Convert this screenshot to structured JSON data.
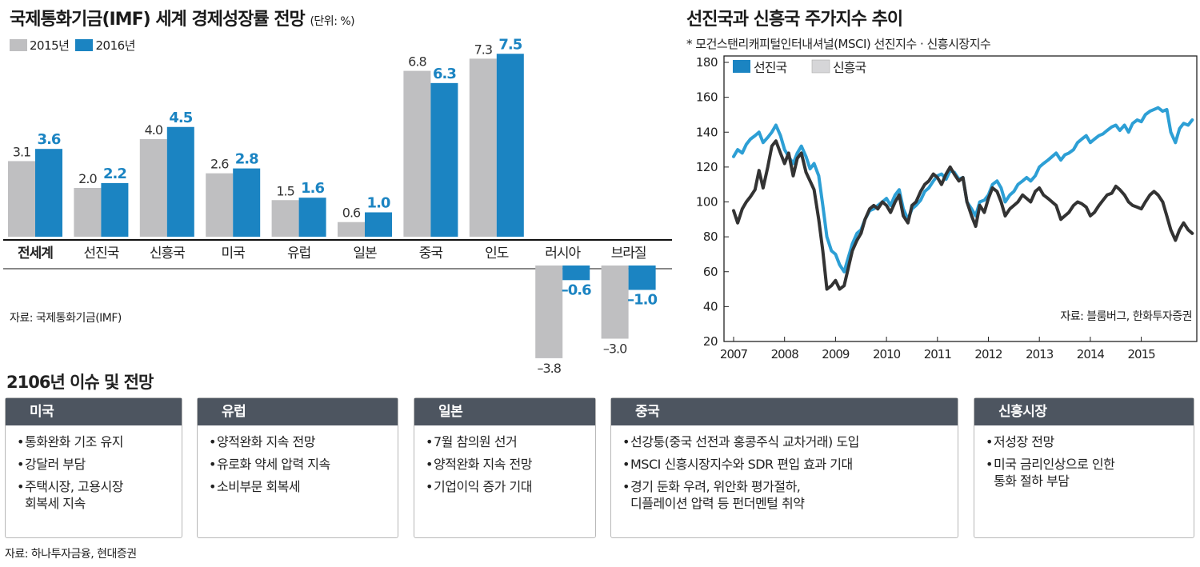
{
  "left_chart": {
    "title": "국제통화기금(IMF) 세계 경제성장률 전망",
    "unit": "(단위: %)",
    "source": "자료: 국제통화기금(IMF)"
  },
  "right_chart": {
    "title": "선진국과 신흥국 주가지수 추이",
    "note": "* 모건스탠리캐피털인터내셔널(MSCI) 선진지수 · 신흥시장지수",
    "source": "자료: 블룸버그, 한화투자증권"
  },
  "colors": {
    "gray": "#bfbfc1",
    "blue": "#1b84c2",
    "dark": "#333333",
    "line_blue": "#2d9fd5"
  },
  "chart_data": [
    {
      "type": "bar",
      "categories": [
        "전세계",
        "선진국",
        "신흥국",
        "미국",
        "유럽",
        "일본",
        "중국",
        "인도",
        "러시아",
        "브라질"
      ],
      "series": [
        {
          "name": "2015년",
          "values": [
            3.1,
            2.0,
            4.0,
            2.6,
            1.5,
            0.6,
            6.8,
            7.3,
            -3.8,
            -3.0
          ]
        },
        {
          "name": "2016년",
          "values": [
            3.6,
            2.2,
            4.5,
            2.8,
            1.6,
            1.0,
            6.3,
            7.5,
            -0.6,
            -1.0
          ]
        }
      ],
      "labels": {
        "2015년": [
          "3.1",
          "2.0",
          "4.0",
          "2.6",
          "1.5",
          "0.6",
          "6.8",
          "7.3",
          "–3.8",
          "–3.0"
        ],
        "2016년": [
          "3.6",
          "2.2",
          "4.5",
          "2.8",
          "1.6",
          "1.0",
          "6.3",
          "7.5",
          "–0.6",
          "–1.0"
        ]
      },
      "ylim": [
        -4.5,
        7.8
      ],
      "legend": "top-left"
    },
    {
      "type": "line",
      "x_ticks": [
        "2007",
        "2008",
        "2009",
        "2010",
        "2011",
        "2012",
        "2013",
        "2014",
        "2015"
      ],
      "y_ticks": [
        20,
        40,
        60,
        80,
        100,
        120,
        140,
        160,
        180
      ],
      "ylim": [
        20,
        180
      ],
      "xlim": [
        2007.0,
        2016.0
      ],
      "legend": "top-left",
      "series": [
        {
          "name": "선진국",
          "points": [
            [
              2007.0,
              126
            ],
            [
              2007.08,
              130
            ],
            [
              2007.17,
              128
            ],
            [
              2007.25,
              133
            ],
            [
              2007.33,
              136
            ],
            [
              2007.42,
              138
            ],
            [
              2007.5,
              140
            ],
            [
              2007.58,
              134
            ],
            [
              2007.67,
              137
            ],
            [
              2007.75,
              140
            ],
            [
              2007.83,
              144
            ],
            [
              2007.92,
              138
            ],
            [
              2008.0,
              130
            ],
            [
              2008.08,
              126
            ],
            [
              2008.17,
              122
            ],
            [
              2008.25,
              128
            ],
            [
              2008.33,
              132
            ],
            [
              2008.42,
              126
            ],
            [
              2008.5,
              119
            ],
            [
              2008.58,
              122
            ],
            [
              2008.67,
              115
            ],
            [
              2008.75,
              98
            ],
            [
              2008.83,
              80
            ],
            [
              2008.92,
              72
            ],
            [
              2009.0,
              70
            ],
            [
              2009.08,
              64
            ],
            [
              2009.17,
              60
            ],
            [
              2009.25,
              68
            ],
            [
              2009.33,
              76
            ],
            [
              2009.42,
              82
            ],
            [
              2009.5,
              84
            ],
            [
              2009.58,
              90
            ],
            [
              2009.67,
              95
            ],
            [
              2009.75,
              96
            ],
            [
              2009.83,
              98
            ],
            [
              2009.92,
              100
            ],
            [
              2010.0,
              102
            ],
            [
              2010.08,
              98
            ],
            [
              2010.17,
              104
            ],
            [
              2010.25,
              107
            ],
            [
              2010.33,
              96
            ],
            [
              2010.42,
              90
            ],
            [
              2010.5,
              96
            ],
            [
              2010.58,
              98
            ],
            [
              2010.67,
              101
            ],
            [
              2010.75,
              106
            ],
            [
              2010.83,
              108
            ],
            [
              2010.92,
              112
            ],
            [
              2011.0,
              115
            ],
            [
              2011.08,
              116
            ],
            [
              2011.17,
              113
            ],
            [
              2011.25,
              118
            ],
            [
              2011.33,
              117
            ],
            [
              2011.42,
              113
            ],
            [
              2011.5,
              114
            ],
            [
              2011.58,
              100
            ],
            [
              2011.67,
              96
            ],
            [
              2011.75,
              92
            ],
            [
              2011.83,
              100
            ],
            [
              2011.92,
              101
            ],
            [
              2012.0,
              104
            ],
            [
              2012.08,
              110
            ],
            [
              2012.17,
              112
            ],
            [
              2012.25,
              108
            ],
            [
              2012.33,
              100
            ],
            [
              2012.42,
              104
            ],
            [
              2012.5,
              106
            ],
            [
              2012.58,
              110
            ],
            [
              2012.67,
              112
            ],
            [
              2012.75,
              114
            ],
            [
              2012.83,
              112
            ],
            [
              2012.92,
              115
            ],
            [
              2013.0,
              120
            ],
            [
              2013.08,
              122
            ],
            [
              2013.17,
              124
            ],
            [
              2013.25,
              126
            ],
            [
              2013.33,
              128
            ],
            [
              2013.42,
              124
            ],
            [
              2013.5,
              127
            ],
            [
              2013.58,
              128
            ],
            [
              2013.67,
              130
            ],
            [
              2013.75,
              134
            ],
            [
              2013.83,
              136
            ],
            [
              2013.92,
              138
            ],
            [
              2014.0,
              134
            ],
            [
              2014.08,
              136
            ],
            [
              2014.17,
              138
            ],
            [
              2014.25,
              139
            ],
            [
              2014.33,
              141
            ],
            [
              2014.42,
              143
            ],
            [
              2014.5,
              144
            ],
            [
              2014.58,
              141
            ],
            [
              2014.67,
              144
            ],
            [
              2014.75,
              140
            ],
            [
              2014.83,
              145
            ],
            [
              2014.92,
              147
            ],
            [
              2015.0,
              146
            ],
            [
              2015.08,
              150
            ],
            [
              2015.17,
              152
            ],
            [
              2015.25,
              153
            ],
            [
              2015.33,
              154
            ],
            [
              2015.42,
              152
            ],
            [
              2015.5,
              153
            ],
            [
              2015.58,
              140
            ],
            [
              2015.67,
              134
            ],
            [
              2015.75,
              142
            ],
            [
              2015.83,
              145
            ],
            [
              2015.92,
              144
            ],
            [
              2016.0,
              147
            ]
          ]
        },
        {
          "name": "신흥국",
          "points": [
            [
              2007.0,
              95
            ],
            [
              2007.08,
              88
            ],
            [
              2007.17,
              96
            ],
            [
              2007.25,
              100
            ],
            [
              2007.33,
              103
            ],
            [
              2007.42,
              107
            ],
            [
              2007.5,
              118
            ],
            [
              2007.58,
              108
            ],
            [
              2007.67,
              120
            ],
            [
              2007.75,
              132
            ],
            [
              2007.83,
              135
            ],
            [
              2007.92,
              128
            ],
            [
              2008.0,
              122
            ],
            [
              2008.08,
              128
            ],
            [
              2008.17,
              115
            ],
            [
              2008.25,
              125
            ],
            [
              2008.33,
              128
            ],
            [
              2008.42,
              117
            ],
            [
              2008.5,
              112
            ],
            [
              2008.58,
              107
            ],
            [
              2008.67,
              90
            ],
            [
              2008.75,
              72
            ],
            [
              2008.83,
              50
            ],
            [
              2008.92,
              52
            ],
            [
              2009.0,
              55
            ],
            [
              2009.08,
              50
            ],
            [
              2009.17,
              52
            ],
            [
              2009.25,
              62
            ],
            [
              2009.33,
              72
            ],
            [
              2009.42,
              78
            ],
            [
              2009.5,
              82
            ],
            [
              2009.58,
              90
            ],
            [
              2009.67,
              96
            ],
            [
              2009.75,
              98
            ],
            [
              2009.83,
              96
            ],
            [
              2009.92,
              100
            ],
            [
              2010.0,
              98
            ],
            [
              2010.08,
              94
            ],
            [
              2010.17,
              100
            ],
            [
              2010.25,
              104
            ],
            [
              2010.33,
              92
            ],
            [
              2010.42,
              88
            ],
            [
              2010.5,
              98
            ],
            [
              2010.58,
              100
            ],
            [
              2010.67,
              106
            ],
            [
              2010.75,
              110
            ],
            [
              2010.83,
              112
            ],
            [
              2010.92,
              116
            ],
            [
              2011.0,
              114
            ],
            [
              2011.08,
              110
            ],
            [
              2011.17,
              116
            ],
            [
              2011.25,
              120
            ],
            [
              2011.33,
              116
            ],
            [
              2011.42,
              112
            ],
            [
              2011.5,
              114
            ],
            [
              2011.58,
              100
            ],
            [
              2011.67,
              92
            ],
            [
              2011.75,
              86
            ],
            [
              2011.83,
              98
            ],
            [
              2011.92,
              94
            ],
            [
              2012.0,
              102
            ],
            [
              2012.08,
              108
            ],
            [
              2012.17,
              106
            ],
            [
              2012.25,
              100
            ],
            [
              2012.33,
              92
            ],
            [
              2012.42,
              96
            ],
            [
              2012.5,
              98
            ],
            [
              2012.58,
              100
            ],
            [
              2012.67,
              104
            ],
            [
              2012.75,
              102
            ],
            [
              2012.83,
              100
            ],
            [
              2012.92,
              106
            ],
            [
              2013.0,
              108
            ],
            [
              2013.08,
              104
            ],
            [
              2013.17,
              102
            ],
            [
              2013.25,
              100
            ],
            [
              2013.33,
              98
            ],
            [
              2013.42,
              90
            ],
            [
              2013.5,
              92
            ],
            [
              2013.58,
              94
            ],
            [
              2013.67,
              98
            ],
            [
              2013.75,
              100
            ],
            [
              2013.83,
              99
            ],
            [
              2013.92,
              97
            ],
            [
              2014.0,
              92
            ],
            [
              2014.08,
              94
            ],
            [
              2014.17,
              98
            ],
            [
              2014.25,
              101
            ],
            [
              2014.33,
              104
            ],
            [
              2014.42,
              105
            ],
            [
              2014.5,
              109
            ],
            [
              2014.58,
              107
            ],
            [
              2014.67,
              104
            ],
            [
              2014.75,
              100
            ],
            [
              2014.83,
              98
            ],
            [
              2014.92,
              97
            ],
            [
              2015.0,
              96
            ],
            [
              2015.08,
              100
            ],
            [
              2015.17,
              104
            ],
            [
              2015.25,
              106
            ],
            [
              2015.33,
              104
            ],
            [
              2015.42,
              100
            ],
            [
              2015.5,
              92
            ],
            [
              2015.58,
              84
            ],
            [
              2015.67,
              78
            ],
            [
              2015.75,
              84
            ],
            [
              2015.83,
              88
            ],
            [
              2015.92,
              84
            ],
            [
              2016.0,
              82
            ]
          ]
        }
      ]
    }
  ],
  "issues": {
    "title": "2106년 이슈 및 전망",
    "source": "자료: 하나투자금융, 현대증권",
    "boxes": [
      {
        "title": "미국",
        "items": [
          "통화완화 기조 유지",
          "강달러 부담",
          "주택시장, 고용시장\n회복세 지속"
        ]
      },
      {
        "title": "유럽",
        "items": [
          "양적완화 지속 전망",
          "유로화 약세 압력 지속",
          "소비부문 회복세"
        ]
      },
      {
        "title": "일본",
        "items": [
          "7월 참의원 선거",
          "양적완화 지속 전망",
          "기업이익 증가 기대"
        ]
      },
      {
        "title": "중국",
        "items": [
          "선강퉁(중국 선전과 홍콩주식 교차거래) 도입",
          "MSCI 신흥시장지수와 SDR 편입 효과 기대",
          "경기 둔화 우려, 위안화 평가절하,\n디플레이션 압력 등 펀더멘털 취약"
        ]
      },
      {
        "title": "신흥시장",
        "items": [
          "저성장 전망",
          "미국 금리인상으로 인한\n통화 절하 부담"
        ]
      }
    ]
  }
}
